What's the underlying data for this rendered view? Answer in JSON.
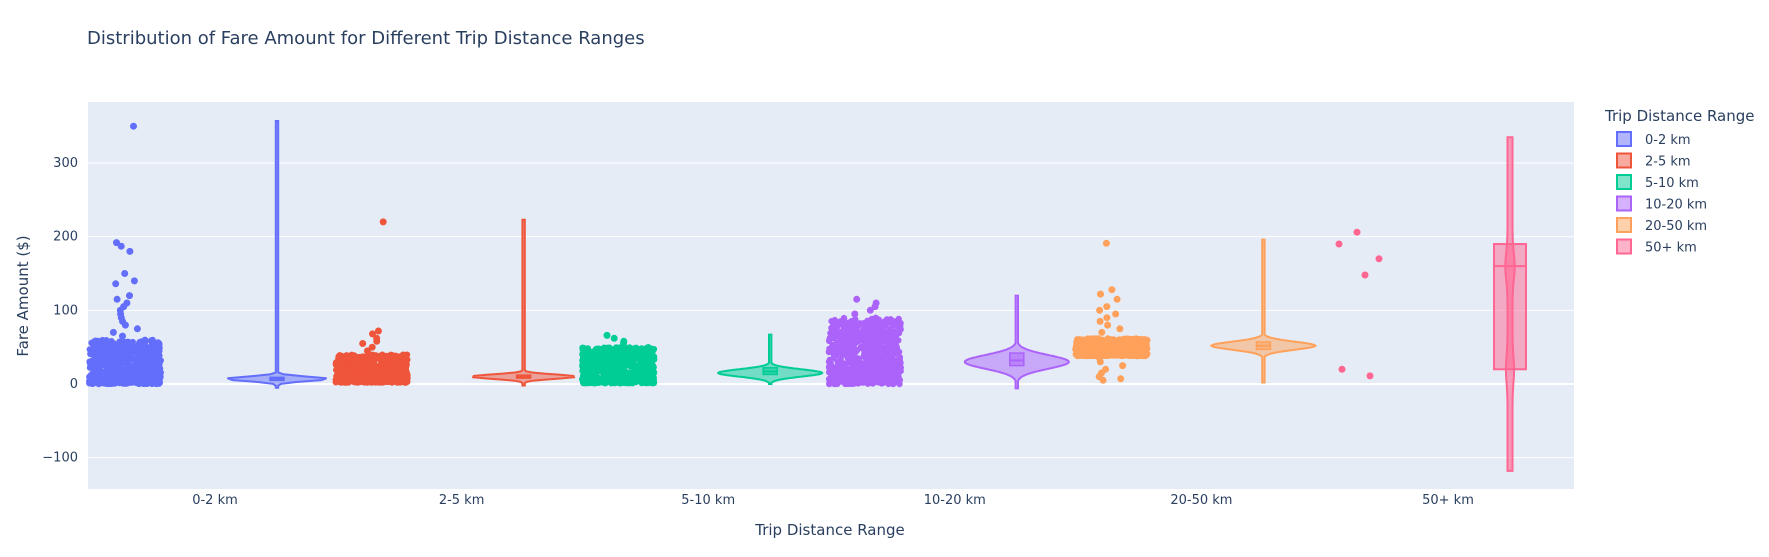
{
  "chart_data": {
    "type": "violin",
    "title": "Distribution of Fare Amount for Different Trip Distance Ranges",
    "xlabel": "Trip Distance Range",
    "ylabel": "Fare Amount ($)",
    "ylim": [
      -145,
      385
    ],
    "yticks": [
      -100,
      0,
      100,
      200,
      300
    ],
    "ytick_labels": [
      "−100",
      "0",
      "100",
      "200",
      "300"
    ],
    "grid": true,
    "legend_title": "Trip Distance Range",
    "legend_position": "top-right, outside plot",
    "categories": [
      "0-2 km",
      "2-5 km",
      "5-10 km",
      "10-20 km",
      "20-50 km",
      "50+ km"
    ],
    "series": [
      {
        "name": "0-2 km",
        "color": "#636efa",
        "violin": {
          "min": -5,
          "max": 357,
          "median": 7,
          "q1": 5,
          "q3": 9,
          "mode": 7
        },
        "points": {
          "dense_min": 0,
          "dense_max": 60,
          "outliers": [
            350,
            192,
            187,
            180,
            150,
            140,
            136,
            120,
            115,
            110,
            105,
            100,
            95,
            90,
            85,
            80,
            75,
            70,
            65
          ]
        }
      },
      {
        "name": "2-5 km",
        "color": "#ef553b",
        "violin": {
          "min": -2,
          "max": 223,
          "median": 10,
          "q1": 8,
          "q3": 12,
          "mode": 10
        },
        "points": {
          "dense_min": 2,
          "dense_max": 40,
          "outliers": [
            220,
            72,
            68,
            62,
            58,
            55,
            50,
            45
          ]
        }
      },
      {
        "name": "5-10 km",
        "color": "#00cc96",
        "violin": {
          "min": 0,
          "max": 67,
          "median": 17,
          "q1": 13,
          "q3": 22,
          "mode": 15
        },
        "points": {
          "dense_min": 1,
          "dense_max": 50,
          "outliers": [
            66,
            62,
            58,
            55
          ]
        }
      },
      {
        "name": "10-20 km",
        "color": "#ab63fa",
        "violin": {
          "min": -6,
          "max": 120,
          "median": 32,
          "q1": 25,
          "q3": 42,
          "mode": 30
        },
        "points": {
          "dense_min": 0,
          "dense_max": 90,
          "outliers": [
            115,
            110,
            105,
            100,
            95
          ]
        }
      },
      {
        "name": "20-50 km",
        "color": "#ffa15a",
        "violin": {
          "min": 2,
          "max": 196,
          "median": 52,
          "q1": 47,
          "q3": 57,
          "mode": 52
        },
        "points": {
          "dense_min": 38,
          "dense_max": 62,
          "outliers": [
            191,
            128,
            122,
            115,
            105,
            100,
            95,
            90,
            85,
            80,
            75,
            70,
            35,
            30,
            25,
            20,
            15,
            10,
            7,
            5
          ]
        }
      },
      {
        "name": "50+ km",
        "color": "#ff6692",
        "violin": {
          "min": -118,
          "max": 335,
          "median": 160,
          "q1": 20,
          "q3": 190,
          "mode": 160
        },
        "points": {
          "outliers": [
            206,
            190,
            170,
            148,
            20,
            11
          ]
        }
      }
    ]
  }
}
